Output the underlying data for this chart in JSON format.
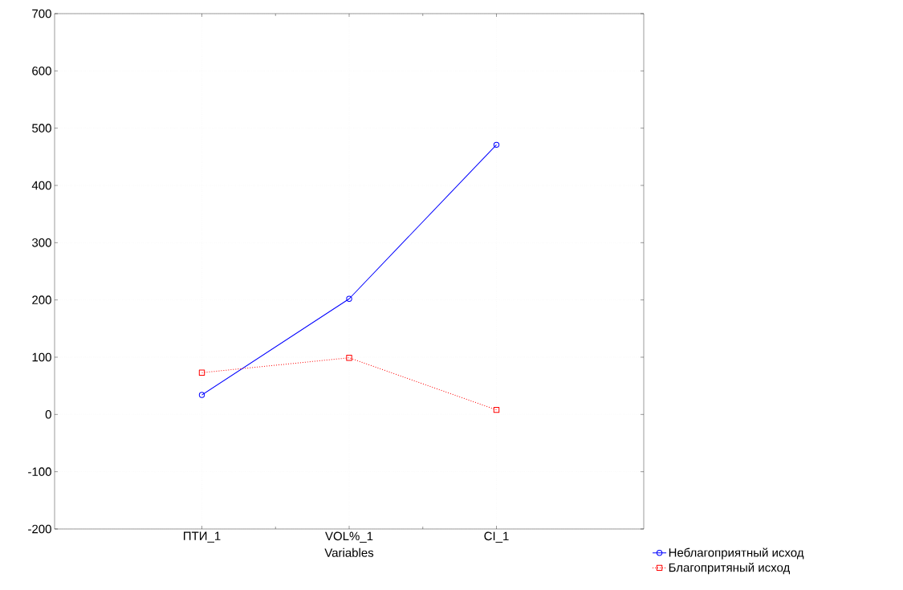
{
  "chart_data": {
    "type": "line",
    "xlabel": "Variables",
    "categories": [
      "ПТИ_1",
      "VOL%_1",
      "CI_1"
    ],
    "series": [
      {
        "name": "Неблагоприятный исход",
        "color": "#0000ff",
        "values": [
          34,
          202,
          471
        ],
        "marker": "circle",
        "line_style": "solid"
      },
      {
        "name": "Благопритяный исход",
        "color": "#ff0000",
        "values": [
          73,
          99,
          8
        ],
        "marker": "square",
        "line_style": "dotted"
      }
    ],
    "ylim": [
      -200,
      700
    ],
    "yticks": [
      -200,
      -100,
      0,
      100,
      200,
      300,
      400,
      500,
      600,
      700
    ],
    "grid": true,
    "legend": "bottom right"
  }
}
